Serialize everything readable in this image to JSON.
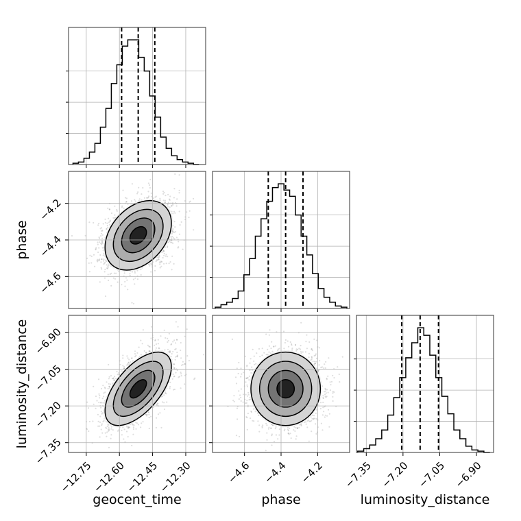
{
  "chart_data": {
    "type": "corner",
    "parameters": [
      {
        "name": "geocent_time",
        "label": "geocent_time",
        "range": [
          -12.83,
          -12.21
        ],
        "ticks": [
          -12.75,
          -12.6,
          -12.45,
          -12.3
        ],
        "tick_labels": [
          "−12.75",
          "−12.60",
          "−12.45",
          "−12.30"
        ],
        "quantiles": [
          -12.59,
          -12.515,
          -12.44
        ]
      },
      {
        "name": "phase",
        "label": "phase",
        "range": [
          -4.775,
          -4.025
        ],
        "ticks": [
          -4.6,
          -4.4,
          -4.2
        ],
        "tick_labels": [
          "−4.6",
          "−4.4",
          "−4.2"
        ],
        "quantiles": [
          -4.47,
          -4.375,
          -4.28
        ]
      },
      {
        "name": "luminosity_distance",
        "label": "luminosity_distance",
        "range": [
          -7.39,
          -6.83
        ],
        "ticks": [
          -7.35,
          -7.2,
          -7.05,
          -6.9
        ],
        "tick_labels": [
          "−7.35",
          "−7.20",
          "−7.05",
          "−6.90"
        ],
        "quantiles": [
          -7.205,
          -7.13,
          -7.055
        ]
      }
    ],
    "histograms": [
      {
        "parameter": "geocent_time",
        "bin_edges_range": [
          -12.81,
          -12.24
        ],
        "counts": [
          1,
          2,
          5,
          10,
          17,
          30,
          45,
          65,
          80,
          95,
          100,
          100,
          86,
          75,
          55,
          38,
          22,
          13,
          7,
          4,
          2,
          1,
          0
        ]
      },
      {
        "parameter": "phase",
        "bin_edges_range": [
          -4.76,
          -4.04
        ],
        "counts": [
          1,
          3,
          5,
          8,
          14,
          27,
          40,
          58,
          72,
          86,
          97,
          100,
          95,
          90,
          75,
          58,
          43,
          28,
          16,
          9,
          5,
          2,
          1
        ]
      },
      {
        "parameter": "luminosity_distance",
        "bin_edges_range": [
          -7.385,
          -6.845
        ],
        "counts": [
          1,
          3,
          6,
          11,
          18,
          30,
          44,
          60,
          76,
          88,
          100,
          94,
          78,
          60,
          45,
          31,
          18,
          11,
          5,
          2,
          1,
          0
        ]
      }
    ],
    "joint": [
      {
        "x": "geocent_time",
        "y": "phase",
        "mean": [
          -12.515,
          -4.375
        ],
        "std": [
          0.075,
          0.095
        ],
        "correlation": 0.35
      },
      {
        "x": "geocent_time",
        "y": "luminosity_distance",
        "mean": [
          -12.515,
          -7.13
        ],
        "std": [
          0.075,
          0.075
        ],
        "correlation": 0.6
      },
      {
        "x": "phase",
        "y": "luminosity_distance",
        "mean": [
          -4.375,
          -7.13
        ],
        "std": [
          0.095,
          0.075
        ],
        "correlation": 0.0
      }
    ],
    "contour_levels": [
      0.5,
      1.0,
      1.5,
      2.0
    ],
    "grid": true,
    "legend": "none"
  }
}
